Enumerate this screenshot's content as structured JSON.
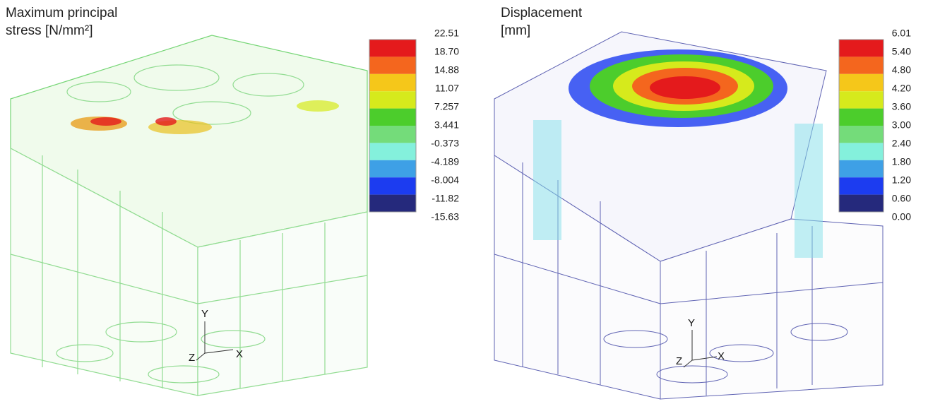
{
  "panels": [
    {
      "title_lines": [
        "Maximum principal",
        "stress [N/mm²]"
      ],
      "legend": {
        "labels": [
          "22.51",
          "18.70",
          "14.88",
          "11.07",
          "7.257",
          "3.441",
          "-0.373",
          "-4.189",
          "-8.004",
          "-11.82",
          "-15.63"
        ],
        "colors": [
          "#e41a1c",
          "#f4661e",
          "#f5c71a",
          "#d6ea1c",
          "#4ccd2c",
          "#74dc7a",
          "#84f0dc",
          "#3ea0e6",
          "#1c3cf0",
          "#25297c"
        ]
      },
      "axes": [
        "Y",
        "Z",
        "X"
      ]
    },
    {
      "title_lines": [
        "Displacement",
        "[mm]"
      ],
      "legend": {
        "labels": [
          "6.01",
          "5.40",
          "4.80",
          "4.20",
          "3.60",
          "3.00",
          "2.40",
          "1.80",
          "1.20",
          "0.60",
          "0.00"
        ],
        "colors": [
          "#e41a1c",
          "#f4661e",
          "#f5c71a",
          "#d6ea1c",
          "#4ccd2c",
          "#74dc7a",
          "#84f0dc",
          "#3ea0e6",
          "#1c3cf0",
          "#25297c"
        ]
      },
      "axes": [
        "Y",
        "Z",
        "X"
      ]
    }
  ]
}
